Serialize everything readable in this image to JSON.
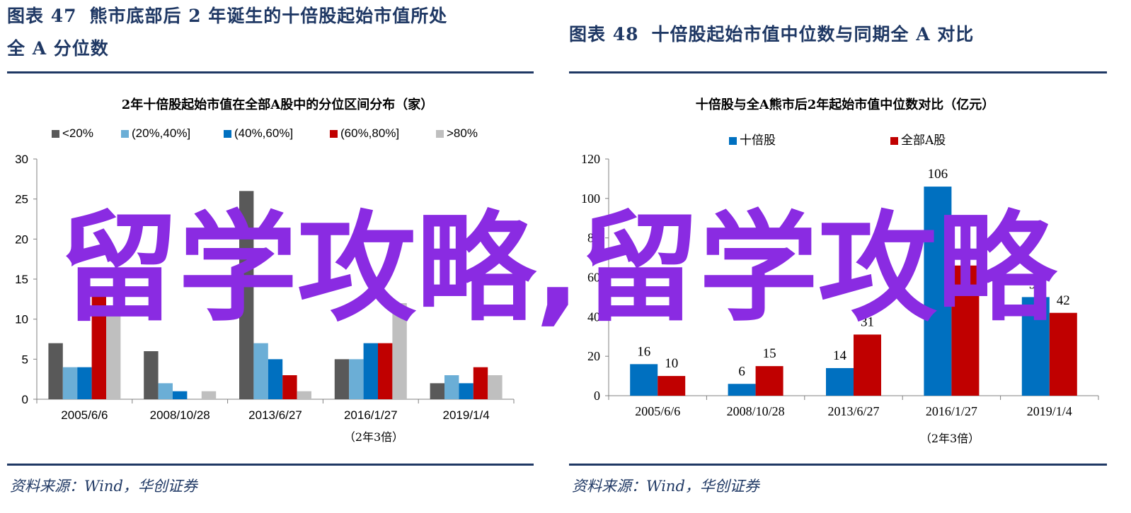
{
  "left": {
    "figure_title_line1": "图表 47",
    "figure_title_line1b": "熊市底部后 2 年诞生的十倍股起始市值所处",
    "figure_title_line2": "全 A 分位数",
    "source": "资料来源：Wind，华创证券"
  },
  "right": {
    "figure_title_a": "图表 48",
    "figure_title_b": "十倍股起始市值中位数与同期全 A 对比",
    "source": "资料来源：Wind，华创证券"
  },
  "watermark": "留学攻略,留学攻略",
  "chart_data": [
    {
      "type": "bar",
      "title": "2年十倍股起始市值在全部A股中的分位区间分布（家）",
      "categories": [
        "2005/6/6",
        "2008/10/28",
        "2013/6/27",
        "2016/1/27",
        "2019/1/4"
      ],
      "note": "（2年3倍）",
      "ylim": [
        0,
        30
      ],
      "yticks": [
        0,
        5,
        10,
        15,
        20,
        25,
        30
      ],
      "legend_position": "top",
      "series": [
        {
          "name": "<20%",
          "color": "#595959",
          "values": [
            7,
            6,
            26,
            5,
            2
          ]
        },
        {
          "name": "(20%,40%]",
          "color": "#6baed6",
          "values": [
            4,
            2,
            7,
            5,
            3
          ]
        },
        {
          "name": "(40%,60%]",
          "color": "#0070c0",
          "values": [
            4,
            1,
            5,
            7,
            2
          ]
        },
        {
          "name": "(60%,80%]",
          "color": "#c00000",
          "values": [
            13,
            0,
            3,
            7,
            4
          ]
        },
        {
          "name": ">80%",
          "color": "#bfbfbf",
          "values": [
            11,
            1,
            1,
            12,
            3
          ]
        }
      ]
    },
    {
      "type": "bar",
      "title": "十倍股与全A熊市后2年起始市值中位数对比（亿元）",
      "categories": [
        "2005/6/6",
        "2008/10/28",
        "2013/6/27",
        "2016/1/27",
        "2019/1/4"
      ],
      "note": "（2年3倍）",
      "ylim": [
        0,
        120
      ],
      "yticks": [
        0,
        20,
        40,
        60,
        80,
        100,
        120
      ],
      "legend_position": "top",
      "series": [
        {
          "name": "十倍股",
          "color": "#0070c0",
          "values": [
            16,
            6,
            14,
            106,
            50
          ]
        },
        {
          "name": "全部A股",
          "color": "#c00000",
          "values": [
            10,
            15,
            31,
            66,
            42
          ]
        }
      ]
    }
  ]
}
